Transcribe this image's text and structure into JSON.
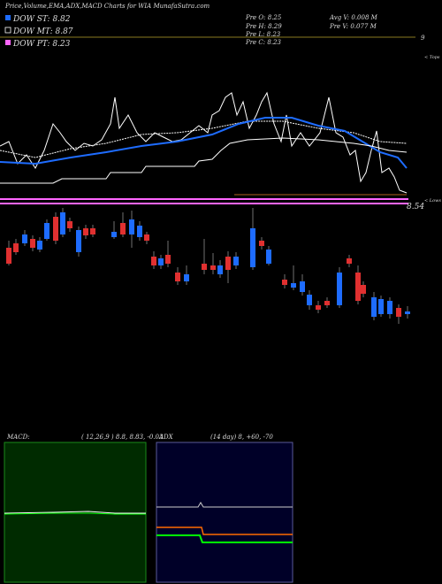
{
  "header": {
    "title": "Price,Volume,EMA,ADX,MACD Charts for WIA MunafaSutra.com"
  },
  "legend": [
    {
      "label": "DOW ST: 8.82",
      "color": "#1e6cff"
    },
    {
      "label": "DOW MT: 8.87",
      "color": "#000000"
    },
    {
      "label": "DOW PT: 8.23",
      "color": "#ff66ff"
    }
  ],
  "info": [
    "Pre  O: 8.25",
    "Avg V: 0.008  M",
    "Pre  H: 8.29",
    "Pre  V: 0.077 M",
    "Pre  L: 8.23",
    "Pre  C: 8.23"
  ],
  "price_chart": {
    "top_label": "9",
    "last_label": "8.54",
    "tops_label": "< Tops",
    "lows_label": "< Lows"
  },
  "macd": {
    "title": "MACD:",
    "params": "( 12,26,9 ) 8.8, 8.83, -0.03"
  },
  "adx": {
    "title": "ADX",
    "params": "(14  day) 8, +60, -70"
  }
}
